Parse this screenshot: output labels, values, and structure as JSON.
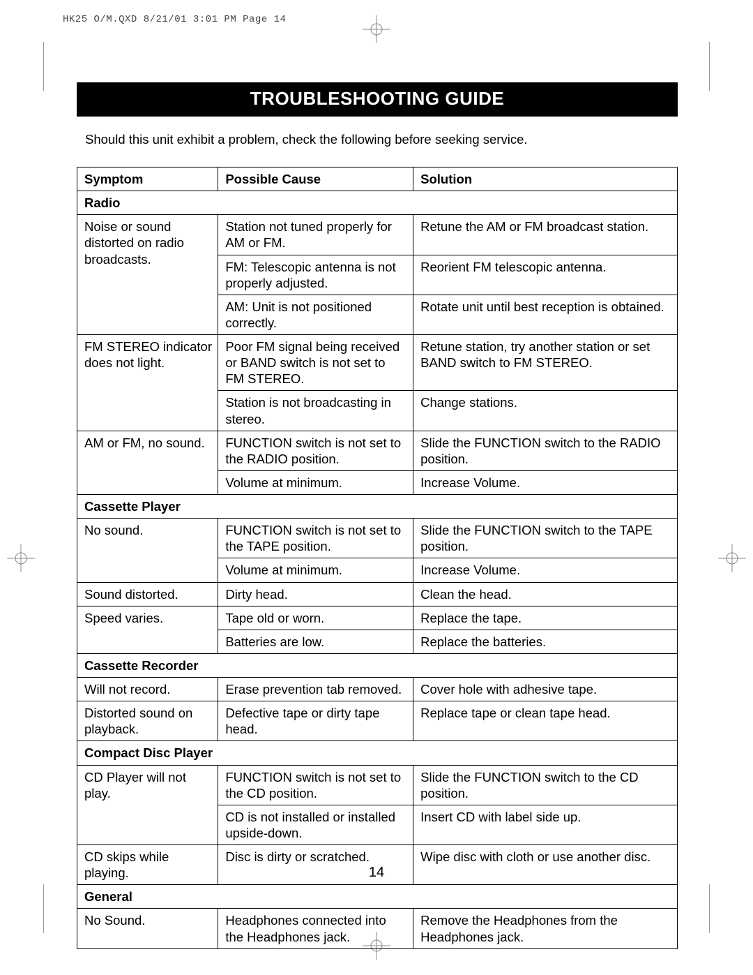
{
  "print_header": "HK25 O/M.QXD  8/21/01  3:01 PM  Page 14",
  "title": "TROUBLESHOOTING GUIDE",
  "intro": "Should this unit exhibit a problem, check the following before seeking service.",
  "page_number": "14",
  "columns": {
    "symptom": "Symptom",
    "cause": "Possible Cause",
    "solution": "Solution"
  },
  "table": {
    "col_widths_pct": [
      23.5,
      32.5,
      44.0
    ],
    "border_color": "#000000",
    "font_size_pt": 14,
    "sections": [
      {
        "heading": "Radio",
        "rows": [
          {
            "symptom": "Noise or sound distorted on radio broadcasts.",
            "causes": [
              {
                "cause": "Station not tuned properly for AM or FM.",
                "solution": "Retune the AM or FM broadcast station."
              },
              {
                "cause": "FM: Telescopic antenna is not properly adjusted.",
                "solution": "Reorient FM telescopic antenna."
              },
              {
                "cause": "AM: Unit is not positioned correctly.",
                "solution": "Rotate unit until best reception is obtained."
              }
            ]
          },
          {
            "symptom": "FM STEREO indicator does not light.",
            "causes": [
              {
                "cause": "Poor FM signal being received or BAND switch is not set to FM STEREO.",
                "solution": "Retune station, try another station or set BAND switch to FM STEREO."
              },
              {
                "cause": "Station is not broadcasting in stereo.",
                "solution": "Change stations."
              }
            ]
          },
          {
            "symptom": "AM or FM, no sound.",
            "causes": [
              {
                "cause": "FUNCTION switch is not set to the RADIO position.",
                "solution": "Slide the FUNCTION switch to the RADIO position."
              },
              {
                "cause": "Volume at minimum.",
                "solution": "Increase Volume."
              }
            ]
          }
        ]
      },
      {
        "heading": "Cassette Player",
        "rows": [
          {
            "symptom": "No sound.",
            "causes": [
              {
                "cause": "FUNCTION switch is not set to the TAPE position.",
                "solution": "Slide the FUNCTION switch to the TAPE position."
              },
              {
                "cause": "Volume at minimum.",
                "solution": "Increase Volume."
              }
            ]
          },
          {
            "symptom": "Sound distorted.",
            "causes": [
              {
                "cause": "Dirty head.",
                "solution": "Clean the head."
              }
            ]
          },
          {
            "symptom": "Speed varies.",
            "causes": [
              {
                "cause": "Tape old or worn.",
                "solution": "Replace the tape."
              },
              {
                "cause": "Batteries are low.",
                "solution": "Replace the batteries."
              }
            ]
          }
        ]
      },
      {
        "heading": "Cassette Recorder",
        "rows": [
          {
            "symptom": "Will not record.",
            "causes": [
              {
                "cause": "Erase prevention tab removed.",
                "solution": "Cover hole with adhesive tape."
              }
            ]
          },
          {
            "symptom": "Distorted sound on playback.",
            "causes": [
              {
                "cause": "Defective tape or dirty tape head.",
                "solution": "Replace tape or clean tape head."
              }
            ]
          }
        ]
      },
      {
        "heading": "Compact Disc Player",
        "rows": [
          {
            "symptom": "CD Player will not play.",
            "causes": [
              {
                "cause": "FUNCTION switch is not set to the CD position.",
                "solution": "Slide the FUNCTION switch to the CD position."
              },
              {
                "cause": "CD is not installed or installed upside-down.",
                "solution": "Insert CD with label side up."
              }
            ]
          },
          {
            "symptom": "CD skips while playing.",
            "causes": [
              {
                "cause": "Disc is dirty or scratched.",
                "solution": "Wipe disc with cloth or use another disc."
              }
            ]
          }
        ]
      },
      {
        "heading": "General",
        "rows": [
          {
            "symptom": "No Sound.",
            "causes": [
              {
                "cause": "Headphones connected into the Headphones jack.",
                "solution": "Remove the Headphones from the Headphones jack."
              }
            ]
          }
        ]
      }
    ]
  }
}
